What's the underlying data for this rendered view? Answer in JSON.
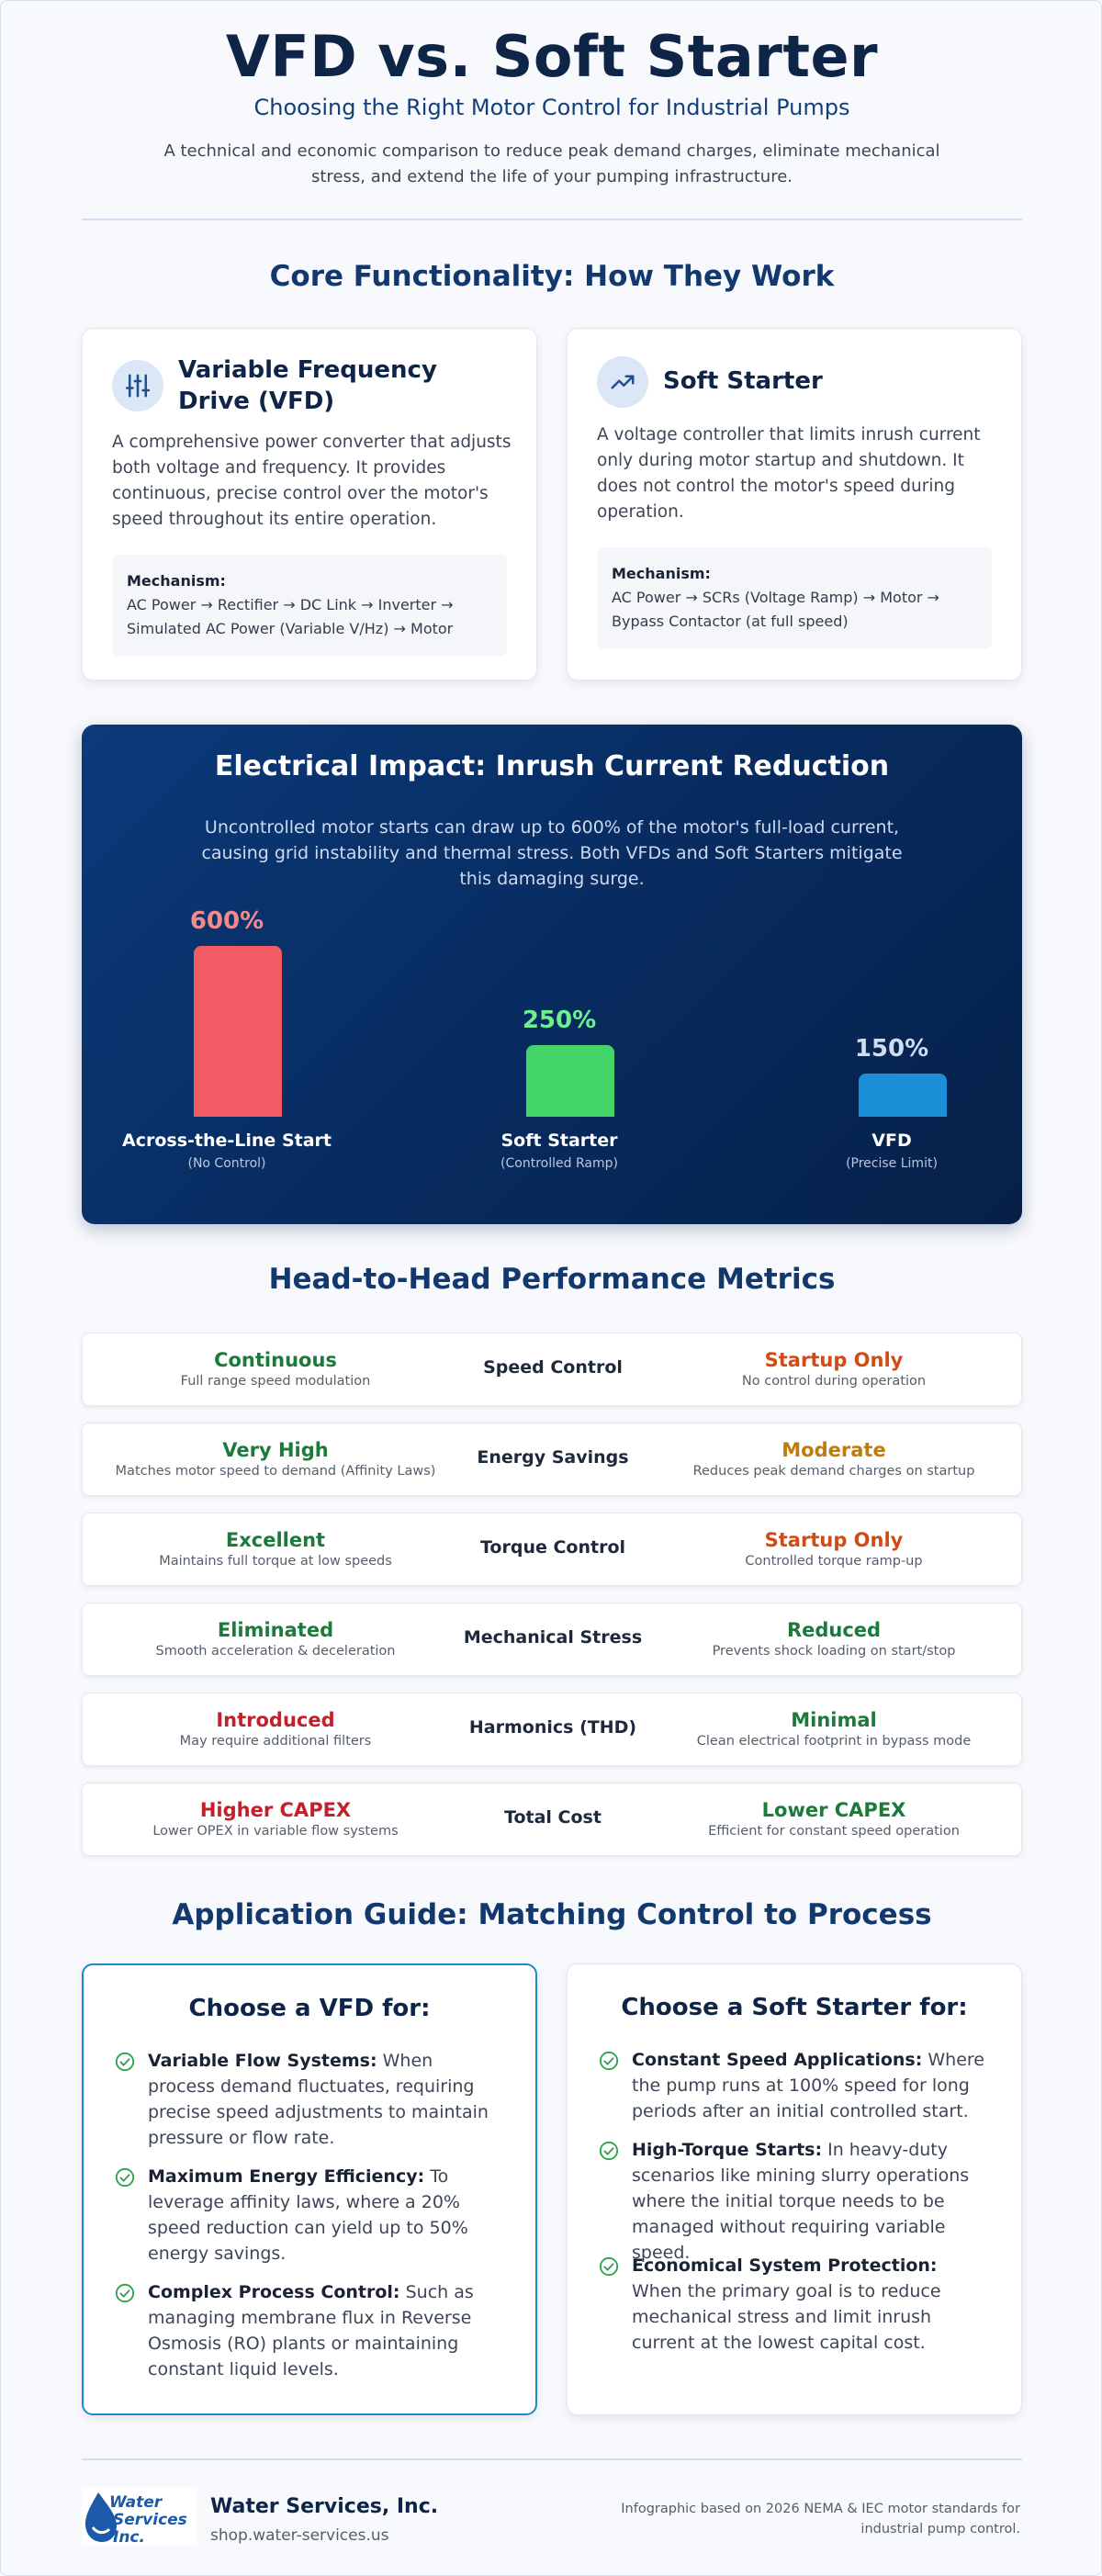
{
  "header": {
    "title": "VFD vs. Soft Starter",
    "subtitle": "Choosing the Right Motor Control for Industrial Pumps",
    "intro": "A technical and economic comparison to reduce peak demand charges, eliminate mechanical stress, and extend the life of your pumping infrastructure."
  },
  "core": {
    "title": "Core Functionality: How They Work",
    "vfd": {
      "icon": "sliders-icon",
      "title": "Variable Frequency Drive (VFD)",
      "desc": "A comprehensive power converter that adjusts both voltage and frequency. It provides continuous, precise control over the motor's speed throughout its entire operation.",
      "mech_label": "Mechanism:",
      "mech_text": "AC Power → Rectifier → DC Link → Inverter → Simulated AC Power (Variable V/Hz) → Motor"
    },
    "soft": {
      "icon": "trend-up-icon",
      "title": "Soft Starter",
      "desc": "A voltage controller that limits inrush current only during motor startup and shutdown. It does not control the motor's speed during operation.",
      "mech_label": "Mechanism:",
      "mech_text": "AC Power → SCRs (Voltage Ramp) → Motor → Bypass Contactor (at full speed)"
    }
  },
  "electrical": {
    "title": "Electrical Impact: Inrush Current Reduction",
    "desc": "Uncontrolled motor starts can draw up to 600% of the motor's full-load current, causing grid instability and thermal stress. Both VFDs and Soft Starters mitigate this damaging surge."
  },
  "chart_data": {
    "type": "bar",
    "categories": [
      "Across-the-Line Start",
      "Soft Starter",
      "VFD"
    ],
    "sublabels": [
      "(No Control)",
      "(Controlled Ramp)",
      "(Precise Limit)"
    ],
    "values": [
      600,
      250,
      150
    ],
    "value_labels": [
      "600%",
      "250%",
      "150%"
    ],
    "colors": [
      "#f25a64",
      "#43d46a",
      "#1b8fd8"
    ],
    "label_colors": [
      "#f68a8a",
      "#6ff08f",
      "#cfdcf2"
    ],
    "ylim": [
      0,
      600
    ],
    "grid": false
  },
  "metrics": {
    "title": "Head-to-Head Performance Metrics",
    "rows": [
      {
        "metric": "Speed Control",
        "left": "Continuous",
        "left_sub": "Full range speed modulation",
        "right": "Startup Only",
        "right_sub": "No control during operation"
      },
      {
        "metric": "Energy Savings",
        "left": "Very High",
        "left_sub": "Matches motor speed to demand (Affinity Laws)",
        "right": "Moderate",
        "right_sub": "Reduces peak demand charges on startup"
      },
      {
        "metric": "Torque Control",
        "left": "Excellent",
        "left_sub": "Maintains full torque at low speeds",
        "right": "Startup Only",
        "right_sub": "Controlled torque ramp-up"
      },
      {
        "metric": "Mechanical Stress",
        "left": "Eliminated",
        "left_sub": "Smooth acceleration & deceleration",
        "right": "Reduced",
        "right_sub": "Prevents shock loading on start/stop"
      },
      {
        "metric": "Harmonics (THD)",
        "left": "Introduced",
        "left_sub": "May require additional filters",
        "right": "Minimal",
        "right_sub": "Clean electrical footprint in bypass mode"
      },
      {
        "metric": "Total Cost",
        "left": "Higher CAPEX",
        "left_sub": "Lower OPEX in variable flow systems",
        "right": "Lower CAPEX",
        "right_sub": "Efficient for constant speed operation"
      }
    ]
  },
  "application": {
    "title": "Application Guide: Matching Control to Process",
    "vfd": {
      "title": "Choose a VFD for:",
      "items": [
        {
          "head": "Variable Flow Systems:",
          "text": " When process demand fluctuates, requiring precise speed adjustments to maintain pressure or flow rate."
        },
        {
          "head": "Maximum Energy Efficiency:",
          "text": " To leverage affinity laws, where a 20% speed reduction can yield up to 50% energy savings."
        },
        {
          "head": "Complex Process Control:",
          "text": " Such as managing membrane flux in Reverse Osmosis (RO) plants or maintaining constant liquid levels."
        }
      ]
    },
    "soft": {
      "title": "Choose a Soft Starter for:",
      "items": [
        {
          "head": "Constant Speed Applications:",
          "text": " Where the pump runs at 100% speed for long periods after an initial controlled start."
        },
        {
          "head": "High-Torque Starts:",
          "text": " In heavy-duty scenarios like mining slurry operations where the initial torque needs to be managed without requiring variable speed."
        },
        {
          "head": "Economical System Protection:",
          "text": " When the primary goal is to reduce mechanical stress and limit inrush current at the lowest capital cost."
        }
      ]
    }
  },
  "footer": {
    "logo_text": "Water Services Inc.",
    "company": "Water Services, Inc.",
    "url": "shop.water-services.us",
    "note": "Infographic based on 2026 NEMA & IEC motor standards for industrial pump control."
  }
}
